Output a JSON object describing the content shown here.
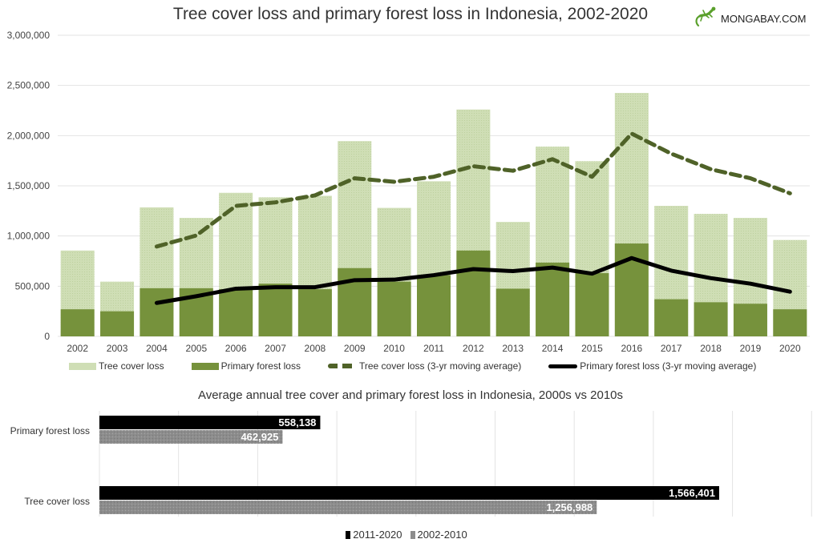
{
  "header": {
    "title": "Tree cover loss and primary forest loss in Indonesia, 2002-2020",
    "logo_text": "MONGABAY.COM",
    "logo_icon": "gecko-icon"
  },
  "colors": {
    "tree_cover": "#cfdeb5",
    "primary_forest": "#76923c",
    "tree_ma": "#4f6228",
    "primary_ma": "#000000",
    "bar_2011_2020": "#000000",
    "bar_2002_2010": "#8c8c8c",
    "grid": "#e3e3e3"
  },
  "legend_main": [
    {
      "label": "Tree cover loss",
      "type": "box",
      "color": "#cfdeb5"
    },
    {
      "label": "Primary forest loss",
      "type": "box",
      "color": "#76923c"
    },
    {
      "label": "Tree cover loss (3-yr moving average)",
      "type": "dash",
      "color": "#4f6228"
    },
    {
      "label": "Primary forest loss (3-yr moving average)",
      "type": "line",
      "color": "#000000"
    }
  ],
  "subchart": {
    "title": "Average annual tree cover and primary forest loss in Indonesia, 2000s vs 2010s"
  },
  "legend_sub": [
    {
      "label": "2011-2020",
      "color": "#000000"
    },
    {
      "label": "2002-2010",
      "color": "#8c8c8c"
    }
  ],
  "chart_data": [
    {
      "type": "bar",
      "title": "Tree cover loss and primary forest loss in Indonesia, 2002-2020",
      "xlabel": "",
      "ylabel": "",
      "ylim": [
        0,
        3000000
      ],
      "yticks": [
        "0",
        "500,000",
        "1,000,000",
        "1,500,000",
        "2,000,000",
        "2,500,000",
        "3,000,000"
      ],
      "ytick_values": [
        0,
        500000,
        1000000,
        1500000,
        2000000,
        2500000,
        3000000
      ],
      "grid": true,
      "legend_position": "bottom",
      "categories": [
        "2002",
        "2003",
        "2004",
        "2005",
        "2006",
        "2007",
        "2008",
        "2009",
        "2010",
        "2011",
        "2012",
        "2013",
        "2014",
        "2015",
        "2016",
        "2017",
        "2018",
        "2019",
        "2020"
      ],
      "series": [
        {
          "name": "Tree cover loss",
          "kind": "bar",
          "values": [
            855000,
            545000,
            1285000,
            1180000,
            1430000,
            1385000,
            1400000,
            1945000,
            1280000,
            1545000,
            2260000,
            1140000,
            1890000,
            1745000,
            2425000,
            1300000,
            1220000,
            1180000,
            960000
          ]
        },
        {
          "name": "Primary forest loss",
          "kind": "bar",
          "values": [
            270000,
            250000,
            480000,
            480000,
            470000,
            525000,
            470000,
            680000,
            545000,
            610000,
            855000,
            475000,
            735000,
            630000,
            925000,
            370000,
            340000,
            325000,
            270000
          ]
        },
        {
          "name": "Tree cover loss (3-yr moving average)",
          "kind": "line-dashed",
          "values": [
            null,
            null,
            895000,
            1005000,
            1300000,
            1335000,
            1405000,
            1575000,
            1540000,
            1590000,
            1695000,
            1650000,
            1765000,
            1590000,
            2020000,
            1820000,
            1665000,
            1575000,
            1425000
          ]
        },
        {
          "name": "Primary forest loss (3-yr moving average)",
          "kind": "line",
          "values": [
            null,
            null,
            333000,
            400000,
            475000,
            490000,
            490000,
            560000,
            565000,
            610000,
            670000,
            650000,
            685000,
            625000,
            780000,
            655000,
            580000,
            525000,
            445000
          ]
        }
      ]
    },
    {
      "type": "bar",
      "orientation": "horizontal",
      "title": "Average annual tree cover and primary forest loss in Indonesia, 2000s vs 2010s",
      "categories": [
        "Primary forest loss",
        "Tree cover loss"
      ],
      "series": [
        {
          "name": "2011-2020",
          "values": [
            558138,
            1566401
          ],
          "labels": [
            "558,138",
            "1,566,401"
          ]
        },
        {
          "name": "2002-2010",
          "values": [
            462925,
            1256988
          ],
          "labels": [
            "462,925",
            "1,256,988"
          ]
        }
      ],
      "xlim": [
        0,
        1800000
      ],
      "grid": true,
      "legend_position": "bottom"
    }
  ]
}
